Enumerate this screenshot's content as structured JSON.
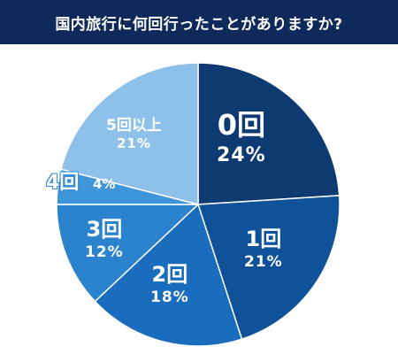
{
  "header": {
    "title": "国内旅行に何回行ったことがありますか?"
  },
  "chart_data": {
    "type": "pie",
    "title": "国内旅行に何回行ったことがありますか?",
    "start_angle_deg": 0,
    "direction": "clockwise",
    "slices": [
      {
        "label": "0回",
        "value": 24,
        "value_label": "24%",
        "color": "#0d3a70"
      },
      {
        "label": "1回",
        "value": 21,
        "value_label": "21%",
        "color": "#0f529a"
      },
      {
        "label": "2回",
        "value": 18,
        "value_label": "18%",
        "color": "#1a6dbd"
      },
      {
        "label": "3回",
        "value": 12,
        "value_label": "12%",
        "color": "#2b83cd"
      },
      {
        "label": "4回",
        "value": 4,
        "value_label": "4%",
        "color": "#3f95da"
      },
      {
        "label": "5回以上",
        "value": 21,
        "value_label": "21%",
        "color": "#8ec1ea"
      }
    ]
  }
}
